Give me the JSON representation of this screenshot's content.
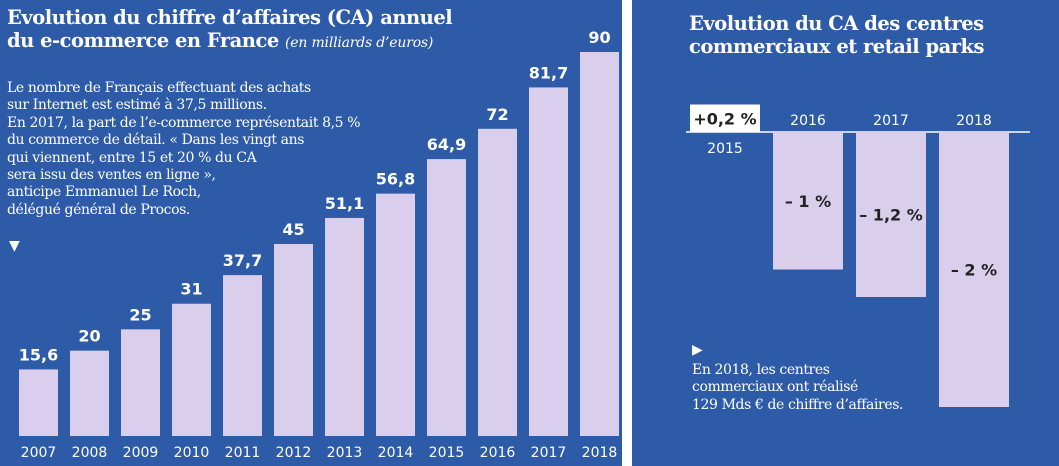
{
  "left": {
    "title_line1": "Evolution du chiffre d’affaires (CA) annuel",
    "title_line2": "du e-commerce en France",
    "subtitle": "(en milliards d’euros)",
    "annotation_lines": [
      "Le nombre de Français effectuant des achats",
      "sur Internet est estimé à 37,5 millions.",
      "En 2017, la part de l’e-commerce représentait 8,5 %",
      "du commerce de détail. « Dans les vingt ans",
      "qui viennent, entre 15 et 20 % du CA",
      "sera issu des ventes en ligne »,",
      "anticipe Emmanuel Le Roch,",
      "délégué général de Procos."
    ],
    "arrow_icon": "triangle-down-icon"
  },
  "right": {
    "title_line1": "Evolution du CA des centres",
    "title_line2": "commerciaux et retail parks",
    "annotation_lines": [
      "En 2018, les centres",
      "commerciaux ont réalisé",
      "129 Mds € de chiffre d’affaires."
    ],
    "arrow_icon": "triangle-right-icon"
  },
  "colors": {
    "background": "#2e5ba8",
    "bar": "#d9cfec",
    "highlight_bar": "#ffffff"
  },
  "chart_data": [
    {
      "type": "bar",
      "title": "Evolution du chiffre d’affaires (CA) annuel du e-commerce en France",
      "subtitle": "(en milliards d’euros)",
      "categories": [
        "2007",
        "2008",
        "2009",
        "2010",
        "2011",
        "2012",
        "2013",
        "2014",
        "2015",
        "2016",
        "2017",
        "2018"
      ],
      "values": [
        15.6,
        20,
        25,
        31,
        37.7,
        45,
        51.1,
        56.8,
        64.9,
        72,
        81.7,
        90
      ],
      "value_labels": [
        "15,6",
        "20",
        "25",
        "31",
        "37,7",
        "45",
        "51,1",
        "56,8",
        "64,9",
        "72",
        "81,7",
        "90"
      ],
      "ylim": [
        0,
        90
      ],
      "grid": false,
      "legend": "none"
    },
    {
      "type": "bar",
      "title": "Evolution du CA des centres commerciaux et retail parks",
      "categories": [
        "2015",
        "2016",
        "2017",
        "2018"
      ],
      "values": [
        0.2,
        -1,
        -1.2,
        -2
      ],
      "value_labels": [
        "+0,2 %",
        "– 1 %",
        "– 1,2 %",
        "– 2 %"
      ],
      "ylim": [
        -2,
        0.2
      ],
      "grid": false,
      "legend": "none"
    }
  ]
}
